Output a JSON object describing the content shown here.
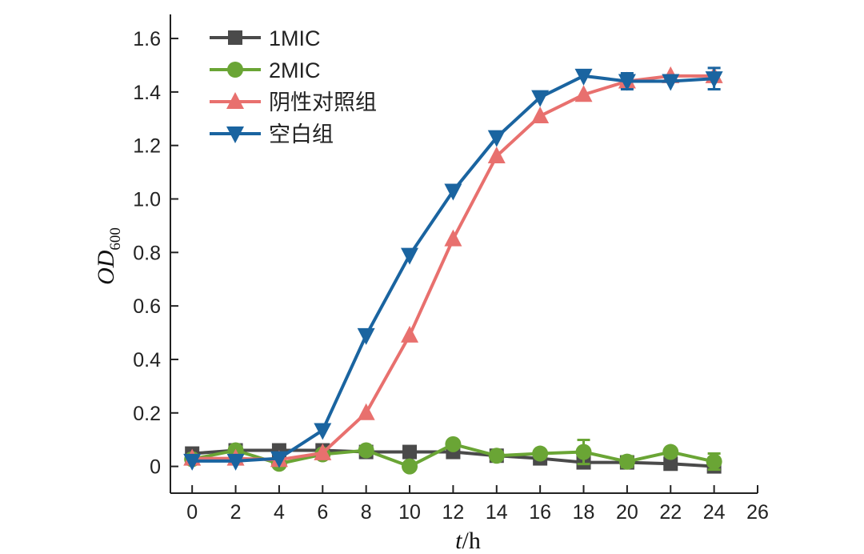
{
  "chart_data": {
    "type": "line",
    "title": "",
    "xlabel_italic": "t",
    "xlabel_rest": "/h",
    "ylabel_main": "OD",
    "ylabel_sub": "600",
    "xlim": [
      -1,
      26
    ],
    "ylim": [
      -0.1,
      1.69
    ],
    "xticks": [
      0,
      2,
      4,
      6,
      8,
      10,
      12,
      14,
      16,
      18,
      20,
      22,
      24,
      26
    ],
    "yticks": [
      0,
      0.2,
      0.4,
      0.6,
      0.8,
      1.0,
      1.2,
      1.4,
      1.6
    ],
    "ytick_labels": [
      "0",
      "0.2",
      "0.4",
      "0.6",
      "0.8",
      "1.0",
      "1.2",
      "1.4",
      "1.6"
    ],
    "grid": false,
    "legend_position": "top-left",
    "x": [
      0,
      2,
      4,
      6,
      8,
      10,
      12,
      14,
      16,
      18,
      20,
      22,
      24
    ],
    "series": [
      {
        "name": "1MIC",
        "color": "#4a4a4a",
        "marker": "square",
        "values": [
          0.048,
          0.06,
          0.06,
          0.06,
          0.054,
          0.054,
          0.054,
          0.04,
          0.03,
          0.015,
          0.015,
          0.01,
          0.0
        ],
        "errors": [
          0,
          0,
          0,
          0,
          0,
          0,
          0,
          0,
          0,
          0.01,
          0.01,
          0,
          0.01
        ]
      },
      {
        "name": "2MIC",
        "color": "#6aa535",
        "marker": "circle",
        "values": [
          0.027,
          0.06,
          0.01,
          0.045,
          0.06,
          0.0,
          0.083,
          0.04,
          0.048,
          0.054,
          0.018,
          0.054,
          0.018
        ],
        "errors": [
          0,
          0.01,
          0,
          0,
          0,
          0,
          0,
          0,
          0,
          0.045,
          0.02,
          0,
          0.03
        ]
      },
      {
        "name": "阴性对照组",
        "color": "#e8706e",
        "marker": "triangle-up",
        "values": [
          0.03,
          0.03,
          0.025,
          0.05,
          0.2,
          0.49,
          0.85,
          1.16,
          1.31,
          1.39,
          1.44,
          1.46,
          1.46
        ],
        "errors": [
          0,
          0,
          0,
          0,
          0,
          0,
          0,
          0,
          0,
          0,
          0,
          0,
          0
        ]
      },
      {
        "name": "空白组",
        "color": "#1a64a0",
        "marker": "triangle-down",
        "values": [
          0.02,
          0.02,
          0.03,
          0.135,
          0.49,
          0.79,
          1.03,
          1.23,
          1.38,
          1.46,
          1.44,
          1.44,
          1.45
        ],
        "errors": [
          0,
          0,
          0,
          0,
          0,
          0,
          0,
          0,
          0,
          0,
          0.03,
          0,
          0.04
        ]
      }
    ]
  }
}
